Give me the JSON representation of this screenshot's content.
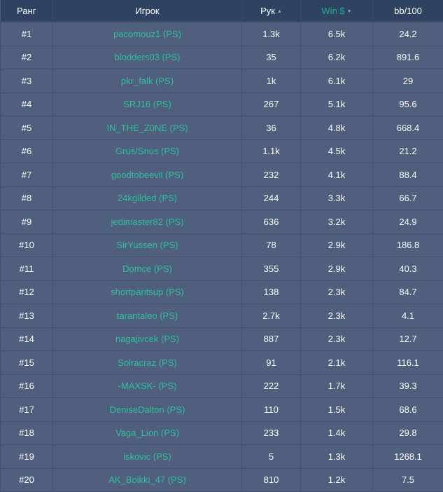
{
  "header": {
    "rank": "Ранг",
    "player": "Игрок",
    "hands": "Рук",
    "win": "Win $",
    "bb100": "bb/100",
    "hands_sort_icon": "▲",
    "win_sort_icon": "▼"
  },
  "colors": {
    "header_bg": "#2f4262",
    "row_bg": "#4f5f7d",
    "player_link": "#2fc19a",
    "active_sort": "#1fae88"
  },
  "rows": [
    {
      "rank": "#1",
      "player": "pacomouz1 (PS)",
      "hands": "1.3k",
      "win": "6.5k",
      "bb100": "24.2"
    },
    {
      "rank": "#2",
      "player": "blodders03 (PS)",
      "hands": "35",
      "win": "6.2k",
      "bb100": "891.6"
    },
    {
      "rank": "#3",
      "player": "pkr_falk (PS)",
      "hands": "1k",
      "win": "6.1k",
      "bb100": "29"
    },
    {
      "rank": "#4",
      "player": "SRJ16 (PS)",
      "hands": "267",
      "win": "5.1k",
      "bb100": "95.6"
    },
    {
      "rank": "#5",
      "player": "IN_THE_Z0NE (PS)",
      "hands": "36",
      "win": "4.8k",
      "bb100": "668.4"
    },
    {
      "rank": "#6",
      "player": "Grus/Snus (PS)",
      "hands": "1.1k",
      "win": "4.5k",
      "bb100": "21.2"
    },
    {
      "rank": "#7",
      "player": "goodtobeevil (PS)",
      "hands": "232",
      "win": "4.1k",
      "bb100": "88.4"
    },
    {
      "rank": "#8",
      "player": "24kgilded (PS)",
      "hands": "244",
      "win": "3.3k",
      "bb100": "66.7"
    },
    {
      "rank": "#9",
      "player": "jedimaster82 (PS)",
      "hands": "636",
      "win": "3.2k",
      "bb100": "24.9"
    },
    {
      "rank": "#10",
      "player": "SirYussen (PS)",
      "hands": "78",
      "win": "2.9k",
      "bb100": "186.8"
    },
    {
      "rank": "#11",
      "player": "Domce (PS)",
      "hands": "355",
      "win": "2.9k",
      "bb100": "40.3"
    },
    {
      "rank": "#12",
      "player": "shortpantsup (PS)",
      "hands": "138",
      "win": "2.3k",
      "bb100": "84.7"
    },
    {
      "rank": "#13",
      "player": "tarantaleo (PS)",
      "hands": "2.7k",
      "win": "2.3k",
      "bb100": "4.1"
    },
    {
      "rank": "#14",
      "player": "nagajivcek (PS)",
      "hands": "887",
      "win": "2.3k",
      "bb100": "12.7"
    },
    {
      "rank": "#15",
      "player": "Solracraz (PS)",
      "hands": "91",
      "win": "2.1k",
      "bb100": "116.1"
    },
    {
      "rank": "#16",
      "player": "-MAXSK- (PS)",
      "hands": "222",
      "win": "1.7k",
      "bb100": "39.3"
    },
    {
      "rank": "#17",
      "player": "DeniseDalton (PS)",
      "hands": "110",
      "win": "1.5k",
      "bb100": "68.6"
    },
    {
      "rank": "#18",
      "player": "Vaga_Lion (PS)",
      "hands": "233",
      "win": "1.4k",
      "bb100": "29.8"
    },
    {
      "rank": "#19",
      "player": "iskovic (PS)",
      "hands": "5",
      "win": "1.3k",
      "bb100": "1268.1"
    },
    {
      "rank": "#20",
      "player": "AK_Boikki_47 (PS)",
      "hands": "810",
      "win": "1.2k",
      "bb100": "7.5"
    }
  ]
}
